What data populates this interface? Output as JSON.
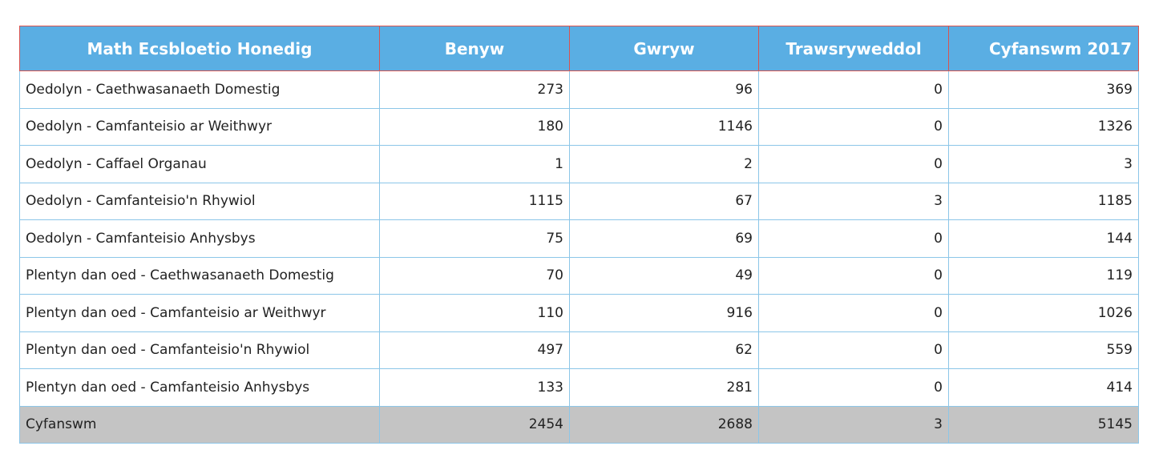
{
  "table": {
    "headers": [
      "Math Ecsbloetio Honedig",
      "Benyw",
      "Gwryw",
      "Trawsryweddol",
      "Cyfanswm 2017"
    ],
    "rows": [
      [
        "Oedolyn - Caethwasanaeth Domestig",
        "273",
        "96",
        "0",
        "369"
      ],
      [
        "Oedolyn - Camfanteisio ar Weithwyr",
        "180",
        "1146",
        "0",
        "1326"
      ],
      [
        "Oedolyn - Caffael Organau",
        "1",
        "2",
        "0",
        "3"
      ],
      [
        "Oedolyn - Camfanteisio'n Rhywiol",
        "1115",
        "67",
        "3",
        "1185"
      ],
      [
        "Oedolyn - Camfanteisio Anhysbys",
        "75",
        "69",
        "0",
        "144"
      ],
      [
        "Plentyn dan oed - Caethwasanaeth Domestig",
        "70",
        "49",
        "0",
        "119"
      ],
      [
        "Plentyn dan oed - Camfanteisio ar Weithwyr",
        "110",
        "916",
        "0",
        "1026"
      ],
      [
        "Plentyn dan oed - Camfanteisio'n Rhywiol",
        "497",
        "62",
        "0",
        "559"
      ],
      [
        "Plentyn dan oed - Camfanteisio Anhysbys",
        "133",
        "281",
        "0",
        "414"
      ]
    ],
    "total": [
      "Cyfanswm",
      "2454",
      "2688",
      "3",
      "5145"
    ]
  }
}
